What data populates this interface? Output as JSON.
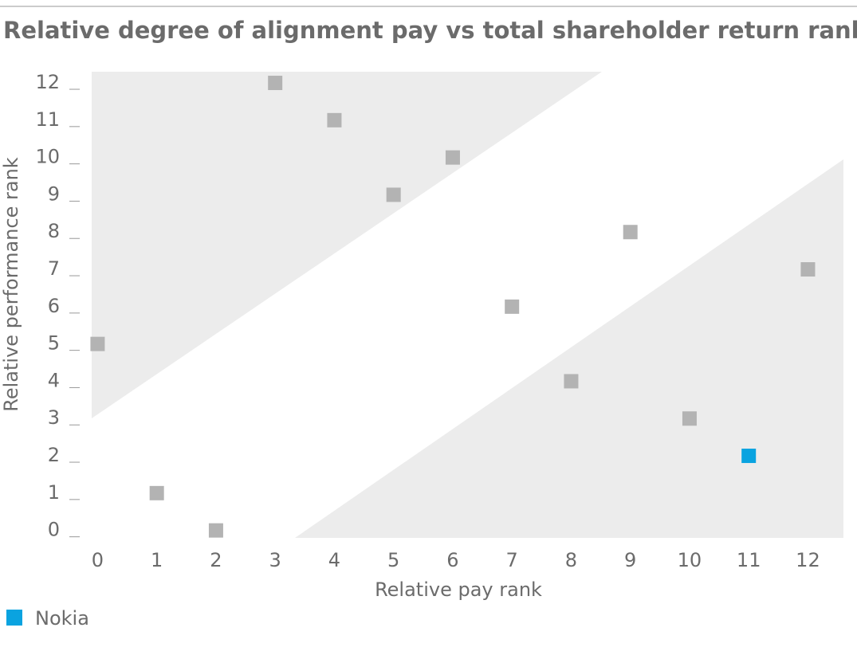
{
  "chart_data": {
    "type": "scatter",
    "title": "Relative degree of alignment pay vs total shareholder return ranking",
    "x_label": "Relative pay rank",
    "y_label": "Relative performance rank",
    "series": [
      {
        "color": "#b3b3b3",
        "x": [
          0,
          1,
          2,
          3,
          4,
          5,
          6,
          7,
          8,
          9,
          10,
          12
        ],
        "y": [
          5,
          1,
          0,
          12,
          11,
          9,
          10,
          6,
          4,
          8,
          3,
          7
        ]
      },
      {
        "name": "Nokia",
        "color": "#0aa3e0",
        "x": [
          11
        ],
        "y": [
          2
        ]
      }
    ],
    "xlim": [
      -0.1,
      12.6
    ],
    "ylim": [
      -0.2,
      12.3
    ],
    "xticks": [
      0,
      1,
      2,
      3,
      4,
      5,
      6,
      7,
      8,
      9,
      10,
      11,
      12
    ],
    "yticks": [
      0,
      1,
      2,
      3,
      4,
      5,
      6,
      7,
      8,
      9,
      10,
      11,
      12
    ]
  }
}
